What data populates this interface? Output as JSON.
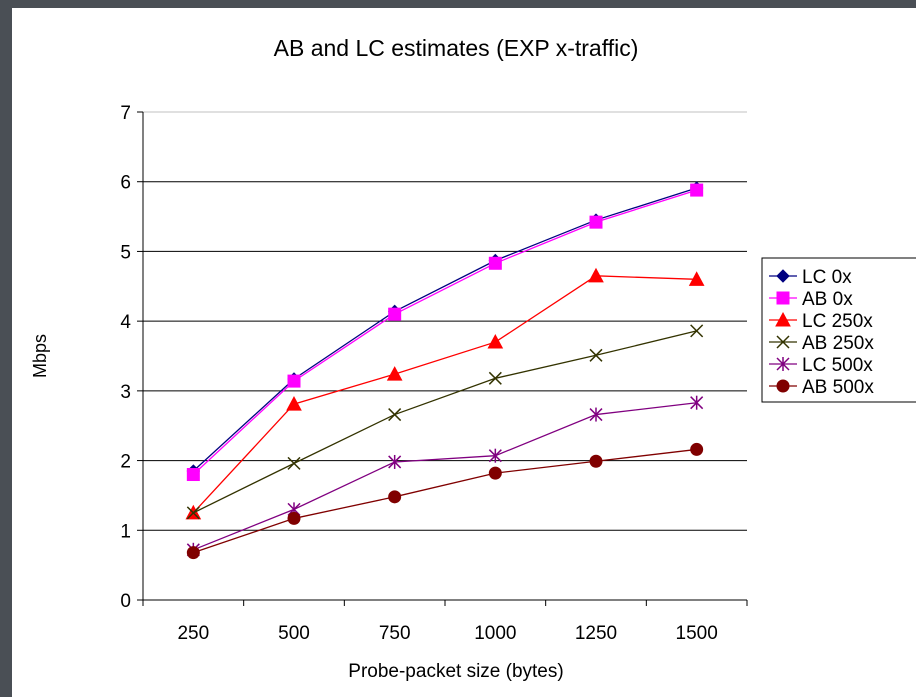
{
  "chart_data": {
    "type": "line",
    "title": "AB and LC estimates (EXP x-traffic)",
    "xlabel": "Probe-packet size (bytes)",
    "ylabel": "Mbps",
    "categories": [
      "250",
      "500",
      "750",
      "1000",
      "1250",
      "1500"
    ],
    "ylim": [
      0,
      7
    ],
    "yticks": [
      "0",
      "1",
      "2",
      "3",
      "4",
      "5",
      "6",
      "7"
    ],
    "grid": true,
    "legend_position": "right",
    "series": [
      {
        "name": "LC 0x",
        "color": "#000080",
        "marker": "diamond",
        "values": [
          1.85,
          3.17,
          4.14,
          4.87,
          5.45,
          5.91
        ]
      },
      {
        "name": "AB 0x",
        "color": "#ff00ff",
        "marker": "square",
        "values": [
          1.8,
          3.14,
          4.1,
          4.83,
          5.42,
          5.88
        ]
      },
      {
        "name": "LC 250x",
        "color": "#ff0000",
        "marker": "triangle",
        "values": [
          1.25,
          2.81,
          3.24,
          3.7,
          4.65,
          4.6
        ]
      },
      {
        "name": "AB 250x",
        "color": "#333300",
        "marker": "x",
        "values": [
          1.25,
          1.96,
          2.66,
          3.18,
          3.51,
          3.86
        ]
      },
      {
        "name": "LC 500x",
        "color": "#800080",
        "marker": "star",
        "values": [
          0.72,
          1.3,
          1.98,
          2.07,
          2.66,
          2.83
        ]
      },
      {
        "name": "AB 500x",
        "color": "#800000",
        "marker": "circle",
        "values": [
          0.68,
          1.17,
          1.48,
          1.82,
          1.99,
          2.16
        ]
      }
    ]
  }
}
